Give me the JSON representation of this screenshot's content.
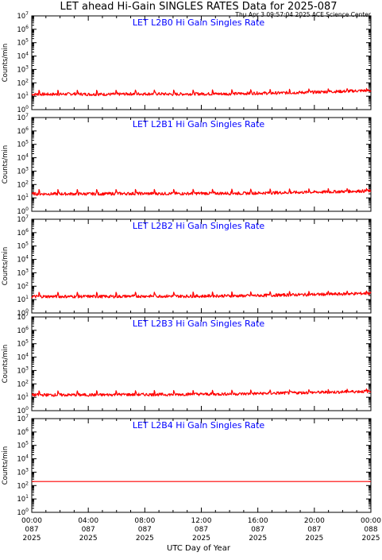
{
  "header": {
    "title": "LET ahead Hi-Gain SINGLES RATES Data for 2025-087",
    "timestamp": "Thu Apr  3 09:57:04 2025 ACE Science Center"
  },
  "axes": {
    "ylabel": "Counts/min",
    "xlabel": "UTC Day of Year"
  },
  "colors": {
    "series": "#ff0000",
    "panel_title": "#0000ff",
    "frame": "#000000"
  },
  "chart_data": [
    {
      "type": "line",
      "title": "LET L2B0 Hi Gain Singles Rate",
      "ylabel": "Counts/min",
      "yscale": "log",
      "ylim": [
        1,
        10000000
      ],
      "xlim": [
        0,
        24
      ],
      "x_unit": "hours UTC on day 087",
      "series": [
        {
          "x": [
            0,
            1,
            2,
            3,
            4,
            5,
            6,
            7,
            8,
            9,
            10,
            11,
            12,
            13,
            14,
            15,
            16,
            17,
            18,
            19,
            20,
            21,
            22,
            23,
            24
          ],
          "values": [
            14,
            14,
            14,
            15,
            14,
            14,
            14,
            15,
            15,
            15,
            14,
            15,
            15,
            15,
            15,
            16,
            17,
            17,
            18,
            19,
            20,
            22,
            23,
            25,
            27
          ],
          "spike_values": [
            28,
            28,
            28,
            28,
            28,
            29,
            29,
            29,
            29,
            30,
            31,
            31,
            32,
            33,
            35,
            36,
            37,
            38
          ]
        }
      ]
    },
    {
      "type": "line",
      "title": "LET L2B1 Hi Gain Singles Rate",
      "ylabel": "Counts/min",
      "yscale": "log",
      "ylim": [
        1,
        10000000
      ],
      "xlim": [
        0,
        24
      ],
      "x_unit": "hours UTC on day 087",
      "series": [
        {
          "x": [
            0,
            1,
            2,
            3,
            4,
            5,
            6,
            7,
            8,
            9,
            10,
            11,
            12,
            13,
            14,
            15,
            16,
            17,
            18,
            19,
            20,
            21,
            22,
            23,
            24
          ],
          "values": [
            20,
            20,
            20,
            20,
            20,
            20,
            21,
            21,
            21,
            21,
            21,
            21,
            22,
            22,
            22,
            22,
            23,
            24,
            25,
            26,
            27,
            28,
            30,
            32,
            33
          ],
          "spike_values": [
            42,
            42,
            42,
            42,
            42,
            43,
            43,
            43,
            44,
            44,
            45,
            45,
            46,
            47,
            48,
            49,
            50,
            50
          ]
        }
      ]
    },
    {
      "type": "line",
      "title": "LET L2B2 Hi Gain Singles Rate",
      "ylabel": "Counts/min",
      "yscale": "log",
      "ylim": [
        1,
        10000000
      ],
      "xlim": [
        0,
        24
      ],
      "x_unit": "hours UTC on day 087",
      "series": [
        {
          "x": [
            0,
            1,
            2,
            3,
            4,
            5,
            6,
            7,
            8,
            9,
            10,
            11,
            12,
            13,
            14,
            15,
            16,
            17,
            18,
            19,
            20,
            21,
            22,
            23,
            24
          ],
          "values": [
            17,
            17,
            17,
            17,
            17,
            17,
            17,
            18,
            18,
            18,
            18,
            18,
            18,
            19,
            19,
            19,
            20,
            21,
            22,
            23,
            24,
            25,
            26,
            28,
            29
          ],
          "spike_values": [
            35,
            35,
            35,
            35,
            35,
            36,
            36,
            36,
            37,
            37,
            38,
            38,
            39,
            40,
            41,
            42,
            43,
            44
          ]
        }
      ]
    },
    {
      "type": "line",
      "title": "LET L2B3 Hi Gain Singles Rate",
      "ylabel": "Counts/min",
      "yscale": "log",
      "ylim": [
        1,
        10000000
      ],
      "xlim": [
        0,
        24
      ],
      "x_unit": "hours UTC on day 087",
      "series": [
        {
          "x": [
            0,
            1,
            2,
            3,
            4,
            5,
            6,
            7,
            8,
            9,
            10,
            11,
            12,
            13,
            14,
            15,
            16,
            17,
            18,
            19,
            20,
            21,
            22,
            23,
            24
          ],
          "values": [
            15,
            15,
            15,
            15,
            15,
            15,
            16,
            16,
            16,
            16,
            16,
            17,
            17,
            17,
            18,
            18,
            19,
            20,
            21,
            22,
            23,
            24,
            25,
            27,
            28
          ],
          "spike_values": [
            30,
            30,
            30,
            31,
            31,
            31,
            32,
            32,
            32,
            33,
            34,
            35,
            35,
            36,
            37,
            38,
            40,
            42
          ]
        }
      ]
    },
    {
      "type": "line",
      "title": "LET L2B4 Hi Gain Singles Rate",
      "ylabel": "Counts/min",
      "yscale": "log",
      "ylim": [
        1,
        10000000
      ],
      "xlim": [
        0,
        24
      ],
      "x_unit": "hours UTC on day 087",
      "series": [
        {
          "x": [
            0,
            1,
            2,
            3,
            4,
            5,
            6,
            7,
            8,
            9,
            10,
            11,
            12,
            13,
            14,
            15,
            16,
            17,
            18,
            19,
            20,
            21,
            22,
            23,
            24
          ],
          "values": [
            200,
            200,
            200,
            200,
            200,
            200,
            200,
            200,
            200,
            200,
            200,
            200,
            200,
            200,
            200,
            200,
            200,
            200,
            200,
            200,
            200,
            200,
            200,
            200,
            200
          ],
          "spike_values": []
        }
      ]
    }
  ],
  "xaxis": {
    "ticks": [
      {
        "time": "00:00",
        "day": "087",
        "year": "2025"
      },
      {
        "time": "04:00",
        "day": "087",
        "year": "2025"
      },
      {
        "time": "08:00",
        "day": "087",
        "year": "2025"
      },
      {
        "time": "12:00",
        "day": "087",
        "year": "2025"
      },
      {
        "time": "16:00",
        "day": "087",
        "year": "2025"
      },
      {
        "time": "20:00",
        "day": "087",
        "year": "2025"
      },
      {
        "time": "00:00",
        "day": "088",
        "year": "2025"
      }
    ]
  },
  "yaxis": {
    "tick_exponents": [
      "0",
      "1",
      "2",
      "3",
      "4",
      "5",
      "6",
      "7"
    ]
  }
}
